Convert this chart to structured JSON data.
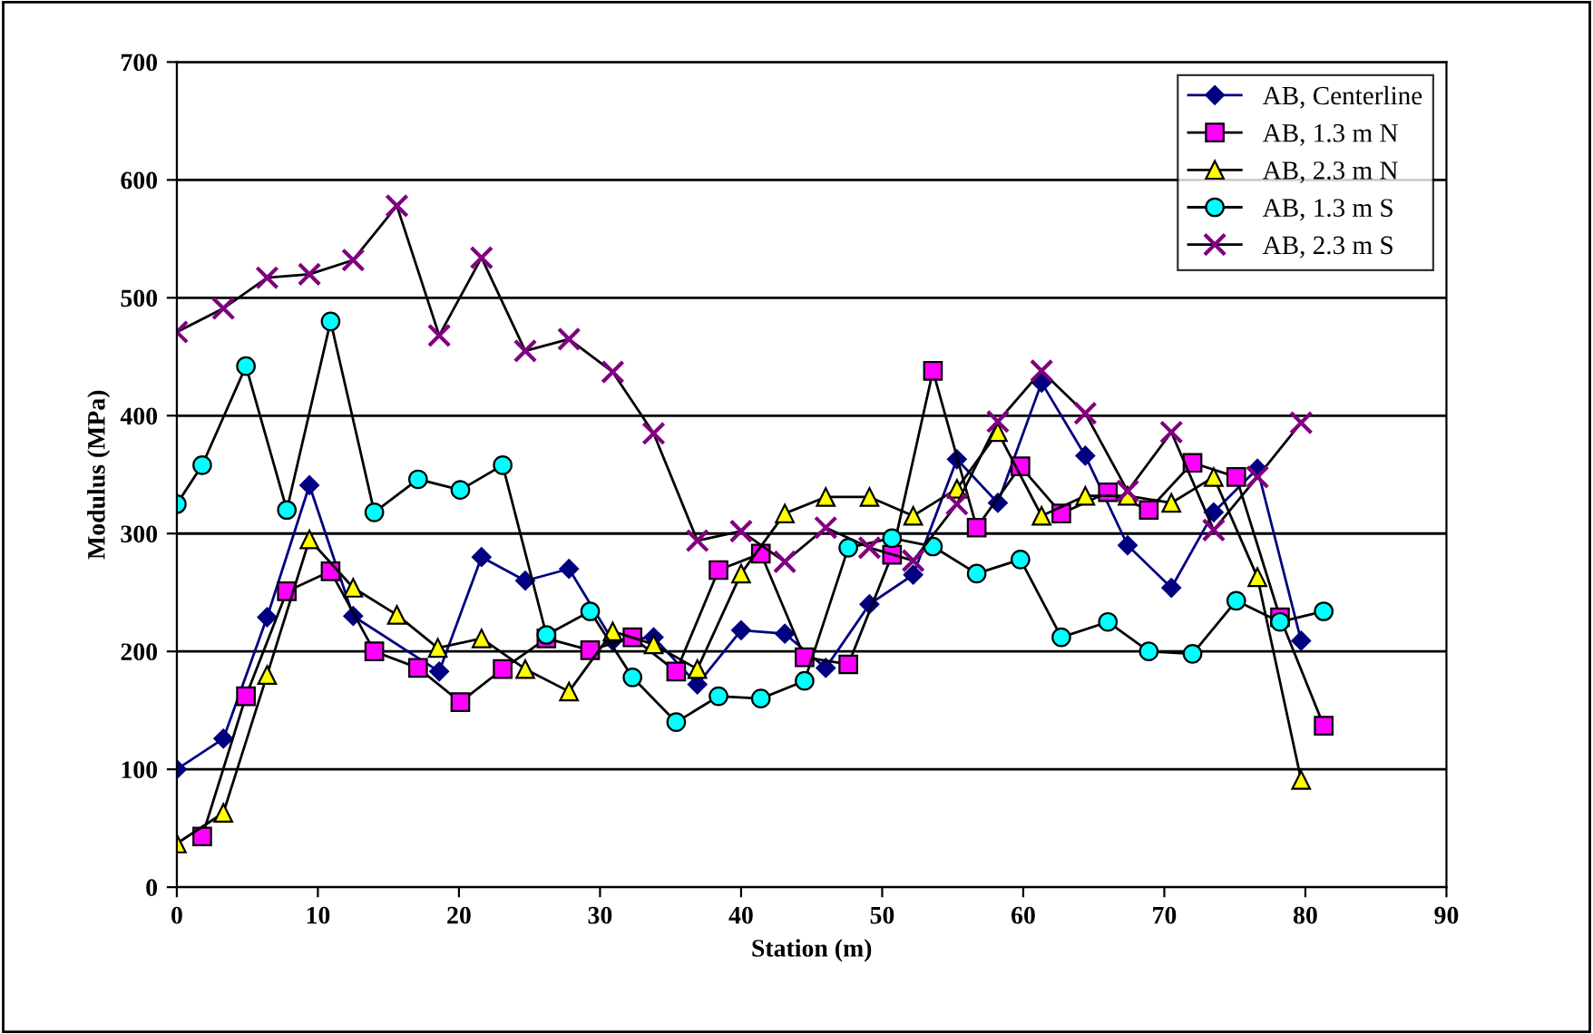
{
  "chart_data": {
    "type": "line",
    "xlabel": "Station (m)",
    "ylabel": "Modulus (MPa)",
    "xlim": [
      0,
      90
    ],
    "xticks": [
      0,
      10,
      20,
      30,
      40,
      50,
      60,
      70,
      80,
      90
    ],
    "ylim": [
      0,
      700
    ],
    "yticks": [
      0,
      100,
      200,
      300,
      400,
      500,
      600,
      700
    ],
    "grid": "y",
    "legend": "top right",
    "series": [
      {
        "name": "AB, Centerline",
        "color": "#000080",
        "marker": "diamond",
        "x": [
          0,
          3.3,
          6.4,
          9.4,
          12.5,
          18.6,
          21.6,
          24.7,
          27.8,
          30.9,
          33.8,
          36.9,
          40.0,
          43.1,
          46.0,
          49.1,
          52.2,
          55.3,
          58.2,
          61.3,
          64.4,
          67.4,
          70.5,
          73.5,
          76.6,
          79.7
        ],
        "values": [
          100,
          126,
          229,
          341,
          230,
          183,
          280,
          260,
          270,
          209,
          212,
          172,
          218,
          215,
          186,
          240,
          265,
          363,
          326,
          428,
          366,
          290,
          254,
          318,
          355,
          209
        ]
      },
      {
        "name": "AB, 1.3 m N",
        "color": "#ff00ff",
        "marker": "square",
        "x": [
          1.8,
          4.9,
          7.8,
          10.9,
          14.0,
          17.1,
          20.1,
          23.1,
          26.2,
          29.3,
          32.3,
          35.4,
          38.4,
          41.4,
          44.5,
          47.6,
          50.7,
          53.6,
          56.7,
          59.8,
          62.7,
          66.0,
          68.9,
          72.0,
          75.1,
          78.2,
          81.3
        ],
        "values": [
          43,
          162,
          251,
          268,
          200,
          186,
          157,
          185,
          211,
          201,
          212,
          183,
          269,
          283,
          195,
          189,
          282,
          438,
          305,
          357,
          317,
          335,
          320,
          360,
          348,
          229,
          137
        ]
      },
      {
        "name": "AB, 2.3 m N",
        "color": "#ffff00",
        "marker": "triangle",
        "x": [
          0,
          3.3,
          6.4,
          9.4,
          12.5,
          15.6,
          18.5,
          21.6,
          24.7,
          27.8,
          30.9,
          33.8,
          36.9,
          40.0,
          43.1,
          46.0,
          49.1,
          52.2,
          55.3,
          58.2,
          61.3,
          64.4,
          67.4,
          70.5,
          73.5,
          76.6,
          79.7
        ],
        "values": [
          37,
          63,
          180,
          295,
          254,
          231,
          203,
          211,
          185,
          166,
          217,
          206,
          185,
          266,
          317,
          331,
          331,
          315,
          338,
          386,
          315,
          332,
          332,
          326,
          348,
          263,
          91
        ]
      },
      {
        "name": "AB, 1.3 m S",
        "color": "#00ffff",
        "marker": "circle",
        "x": [
          0,
          1.8,
          4.9,
          7.8,
          10.9,
          14.0,
          17.1,
          20.1,
          23.1,
          26.2,
          29.3,
          32.3,
          35.4,
          38.4,
          41.4,
          44.5,
          47.6,
          50.7,
          53.6,
          56.7,
          59.8,
          62.7,
          66.0,
          68.9,
          72.0,
          75.1,
          78.2,
          81.3
        ],
        "values": [
          325,
          358,
          442,
          320,
          480,
          318,
          346,
          337,
          358,
          214,
          234,
          178,
          140,
          162,
          160,
          175,
          288,
          296,
          289,
          266,
          278,
          212,
          225,
          200,
          198,
          243,
          225,
          234
        ]
      },
      {
        "name": "AB, 2.3 m S",
        "color": "#800080",
        "marker": "cross",
        "x": [
          0,
          3.3,
          6.4,
          9.4,
          12.5,
          15.6,
          18.6,
          21.6,
          24.7,
          27.8,
          30.9,
          33.8,
          36.9,
          40.0,
          43.1,
          46.0,
          49.1,
          52.2,
          55.3,
          58.2,
          61.3,
          64.4,
          67.4,
          70.5,
          73.5,
          76.6,
          79.7
        ],
        "values": [
          471,
          491,
          517,
          520,
          532,
          578,
          468,
          534,
          455,
          465,
          437,
          385,
          294,
          302,
          276,
          305,
          288,
          277,
          325,
          395,
          438,
          402,
          336,
          386,
          303,
          348,
          394
        ]
      }
    ]
  }
}
